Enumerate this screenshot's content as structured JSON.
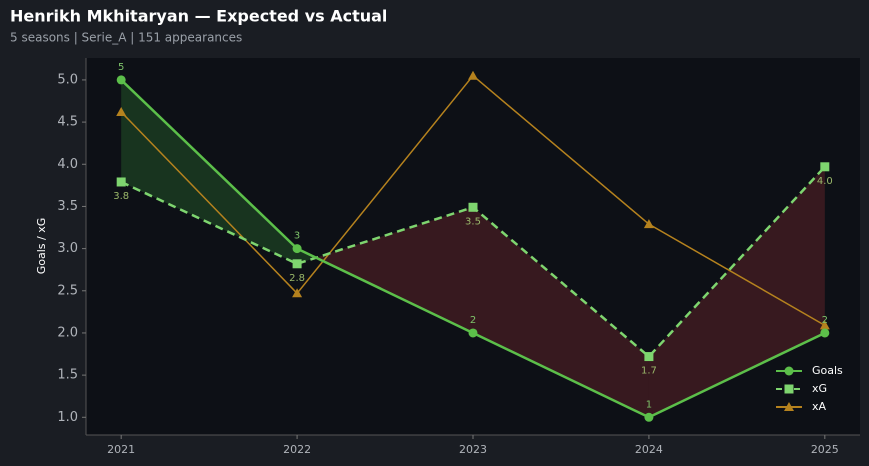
{
  "chart_data": {
    "type": "line",
    "title": "Henrikh Mkhitaryan — Expected vs Actual",
    "subtitle": "5 seasons | Serie_A | 151 appearances",
    "y_label": "Goals / xG",
    "x": [
      2021,
      2022,
      2023,
      2024,
      2025
    ],
    "xlim": [
      2020.8,
      2025.2
    ],
    "xticks": [
      2021,
      2022,
      2023,
      2024,
      2025
    ],
    "ylim": [
      0.79,
      5.26
    ],
    "yticks": [
      {
        "value": 1,
        "label": "1.0"
      },
      {
        "value": 1.5,
        "label": "1.5"
      },
      {
        "value": 2,
        "label": "2.0"
      },
      {
        "value": 2.5,
        "label": "2.5"
      },
      {
        "value": 3,
        "label": "3.0"
      },
      {
        "value": 3.5,
        "label": "3.5"
      },
      {
        "value": 4,
        "label": "4.0"
      },
      {
        "value": 4.5,
        "label": "4.5"
      },
      {
        "value": 5,
        "label": "5.0"
      }
    ],
    "legend": "lower right",
    "series": [
      {
        "name": "Goals",
        "color": "#5cbf4a",
        "marker": "circle",
        "dash": false,
        "values": [
          5,
          3,
          2,
          1,
          2
        ]
      },
      {
        "name": "xG",
        "color": "#7ed56f",
        "marker": "square",
        "dash": true,
        "values": [
          3.79,
          2.82,
          3.49,
          1.72,
          3.97
        ],
        "value_labels": [
          "3.8",
          "2.8",
          "3.5",
          "1.7",
          "4.0"
        ]
      },
      {
        "name": "xA",
        "color": "#b5821e",
        "marker": "triangle",
        "dash": false,
        "values": [
          4.62,
          2.47,
          5.05,
          3.29,
          2.09
        ]
      }
    ]
  }
}
